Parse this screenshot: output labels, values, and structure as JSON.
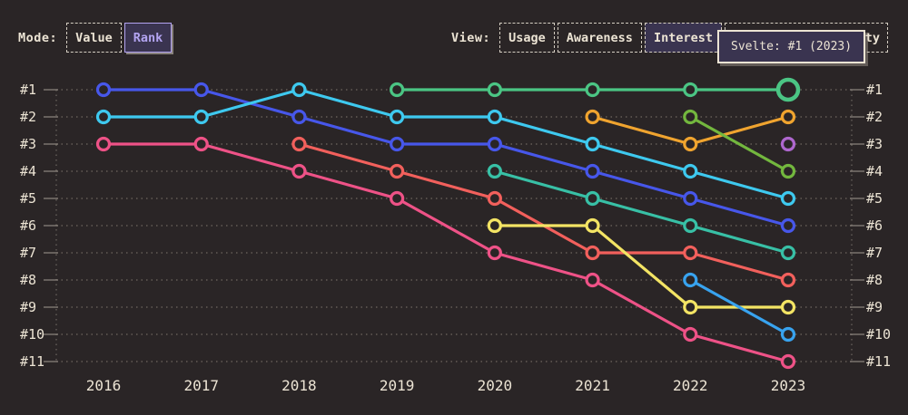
{
  "page": {
    "background": "#2a2526",
    "text_color": "#ece4d4"
  },
  "toolbar": {
    "mode": {
      "label": "Mode:",
      "options": [
        {
          "label": "Value",
          "selected": false
        },
        {
          "label": "Rank",
          "selected": true
        }
      ]
    },
    "view": {
      "label": "View:",
      "options": [
        {
          "label": "Usage",
          "selected": false
        },
        {
          "label": "Awareness",
          "selected": false
        },
        {
          "label": "Interest",
          "selected": true
        },
        {
          "label": "Positivity",
          "selected": false
        }
      ]
    },
    "selected_fill": "#3a3450",
    "selected_mode_accent": "#b3a4f1"
  },
  "tooltip": {
    "text": "Svelte: #1 (2023)"
  },
  "chart_data": {
    "type": "line",
    "variant": "bump-rank",
    "title": "",
    "xlabel": "",
    "ylabel": "",
    "x": [
      "2016",
      "2017",
      "2018",
      "2019",
      "2020",
      "2021",
      "2022",
      "2023"
    ],
    "rank_labels": [
      "#1",
      "#2",
      "#3",
      "#4",
      "#5",
      "#6",
      "#7",
      "#8",
      "#9",
      "#10",
      "#11"
    ],
    "ylim": [
      1,
      11
    ],
    "y_inverted": true,
    "grid": "dotted-horizontal-with-edge-ticks",
    "legend": "none",
    "series": [
      {
        "id": "royal-blue",
        "color": "#4757ea",
        "ranks": [
          1,
          1,
          2,
          3,
          3,
          4,
          5,
          6
        ]
      },
      {
        "id": "cyan",
        "color": "#3ec9ef",
        "ranks": [
          2,
          2,
          1,
          2,
          2,
          3,
          4,
          5
        ]
      },
      {
        "id": "magenta-pink",
        "color": "#ee5287",
        "ranks": [
          3,
          3,
          4,
          5,
          7,
          8,
          10,
          11
        ]
      },
      {
        "id": "salmon-red",
        "color": "#f2605c",
        "ranks": [
          null,
          null,
          3,
          4,
          5,
          7,
          7,
          8
        ]
      },
      {
        "id": "teal",
        "color": "#38c0a6",
        "ranks": [
          null,
          null,
          null,
          null,
          4,
          5,
          6,
          7
        ]
      },
      {
        "id": "yellow",
        "color": "#f3e464",
        "ranks": [
          null,
          null,
          null,
          null,
          6,
          6,
          9,
          9
        ]
      },
      {
        "id": "orange",
        "color": "#f0a42f",
        "ranks": [
          null,
          null,
          null,
          null,
          null,
          2,
          3,
          2
        ]
      },
      {
        "id": "olive-green",
        "color": "#73b73e",
        "ranks": [
          null,
          null,
          null,
          null,
          null,
          null,
          2,
          4
        ]
      },
      {
        "id": "sky-blue",
        "color": "#38a3ef",
        "ranks": [
          null,
          null,
          null,
          null,
          null,
          null,
          8,
          10
        ]
      },
      {
        "id": "purple",
        "color": "#ae67ce",
        "ranks": [
          null,
          null,
          null,
          null,
          null,
          null,
          null,
          3
        ]
      },
      {
        "id": "emerald-green",
        "color": "#4bc584",
        "ranks": [
          null,
          null,
          null,
          1,
          1,
          1,
          1,
          1
        ]
      }
    ],
    "highlight_point": {
      "series_id": "emerald-green",
      "x": "2023",
      "rank": 1,
      "tooltip": "Svelte: #1 (2023)"
    },
    "axis_text_color": "#ece4d4",
    "gridline_color": "#6f6861"
  }
}
